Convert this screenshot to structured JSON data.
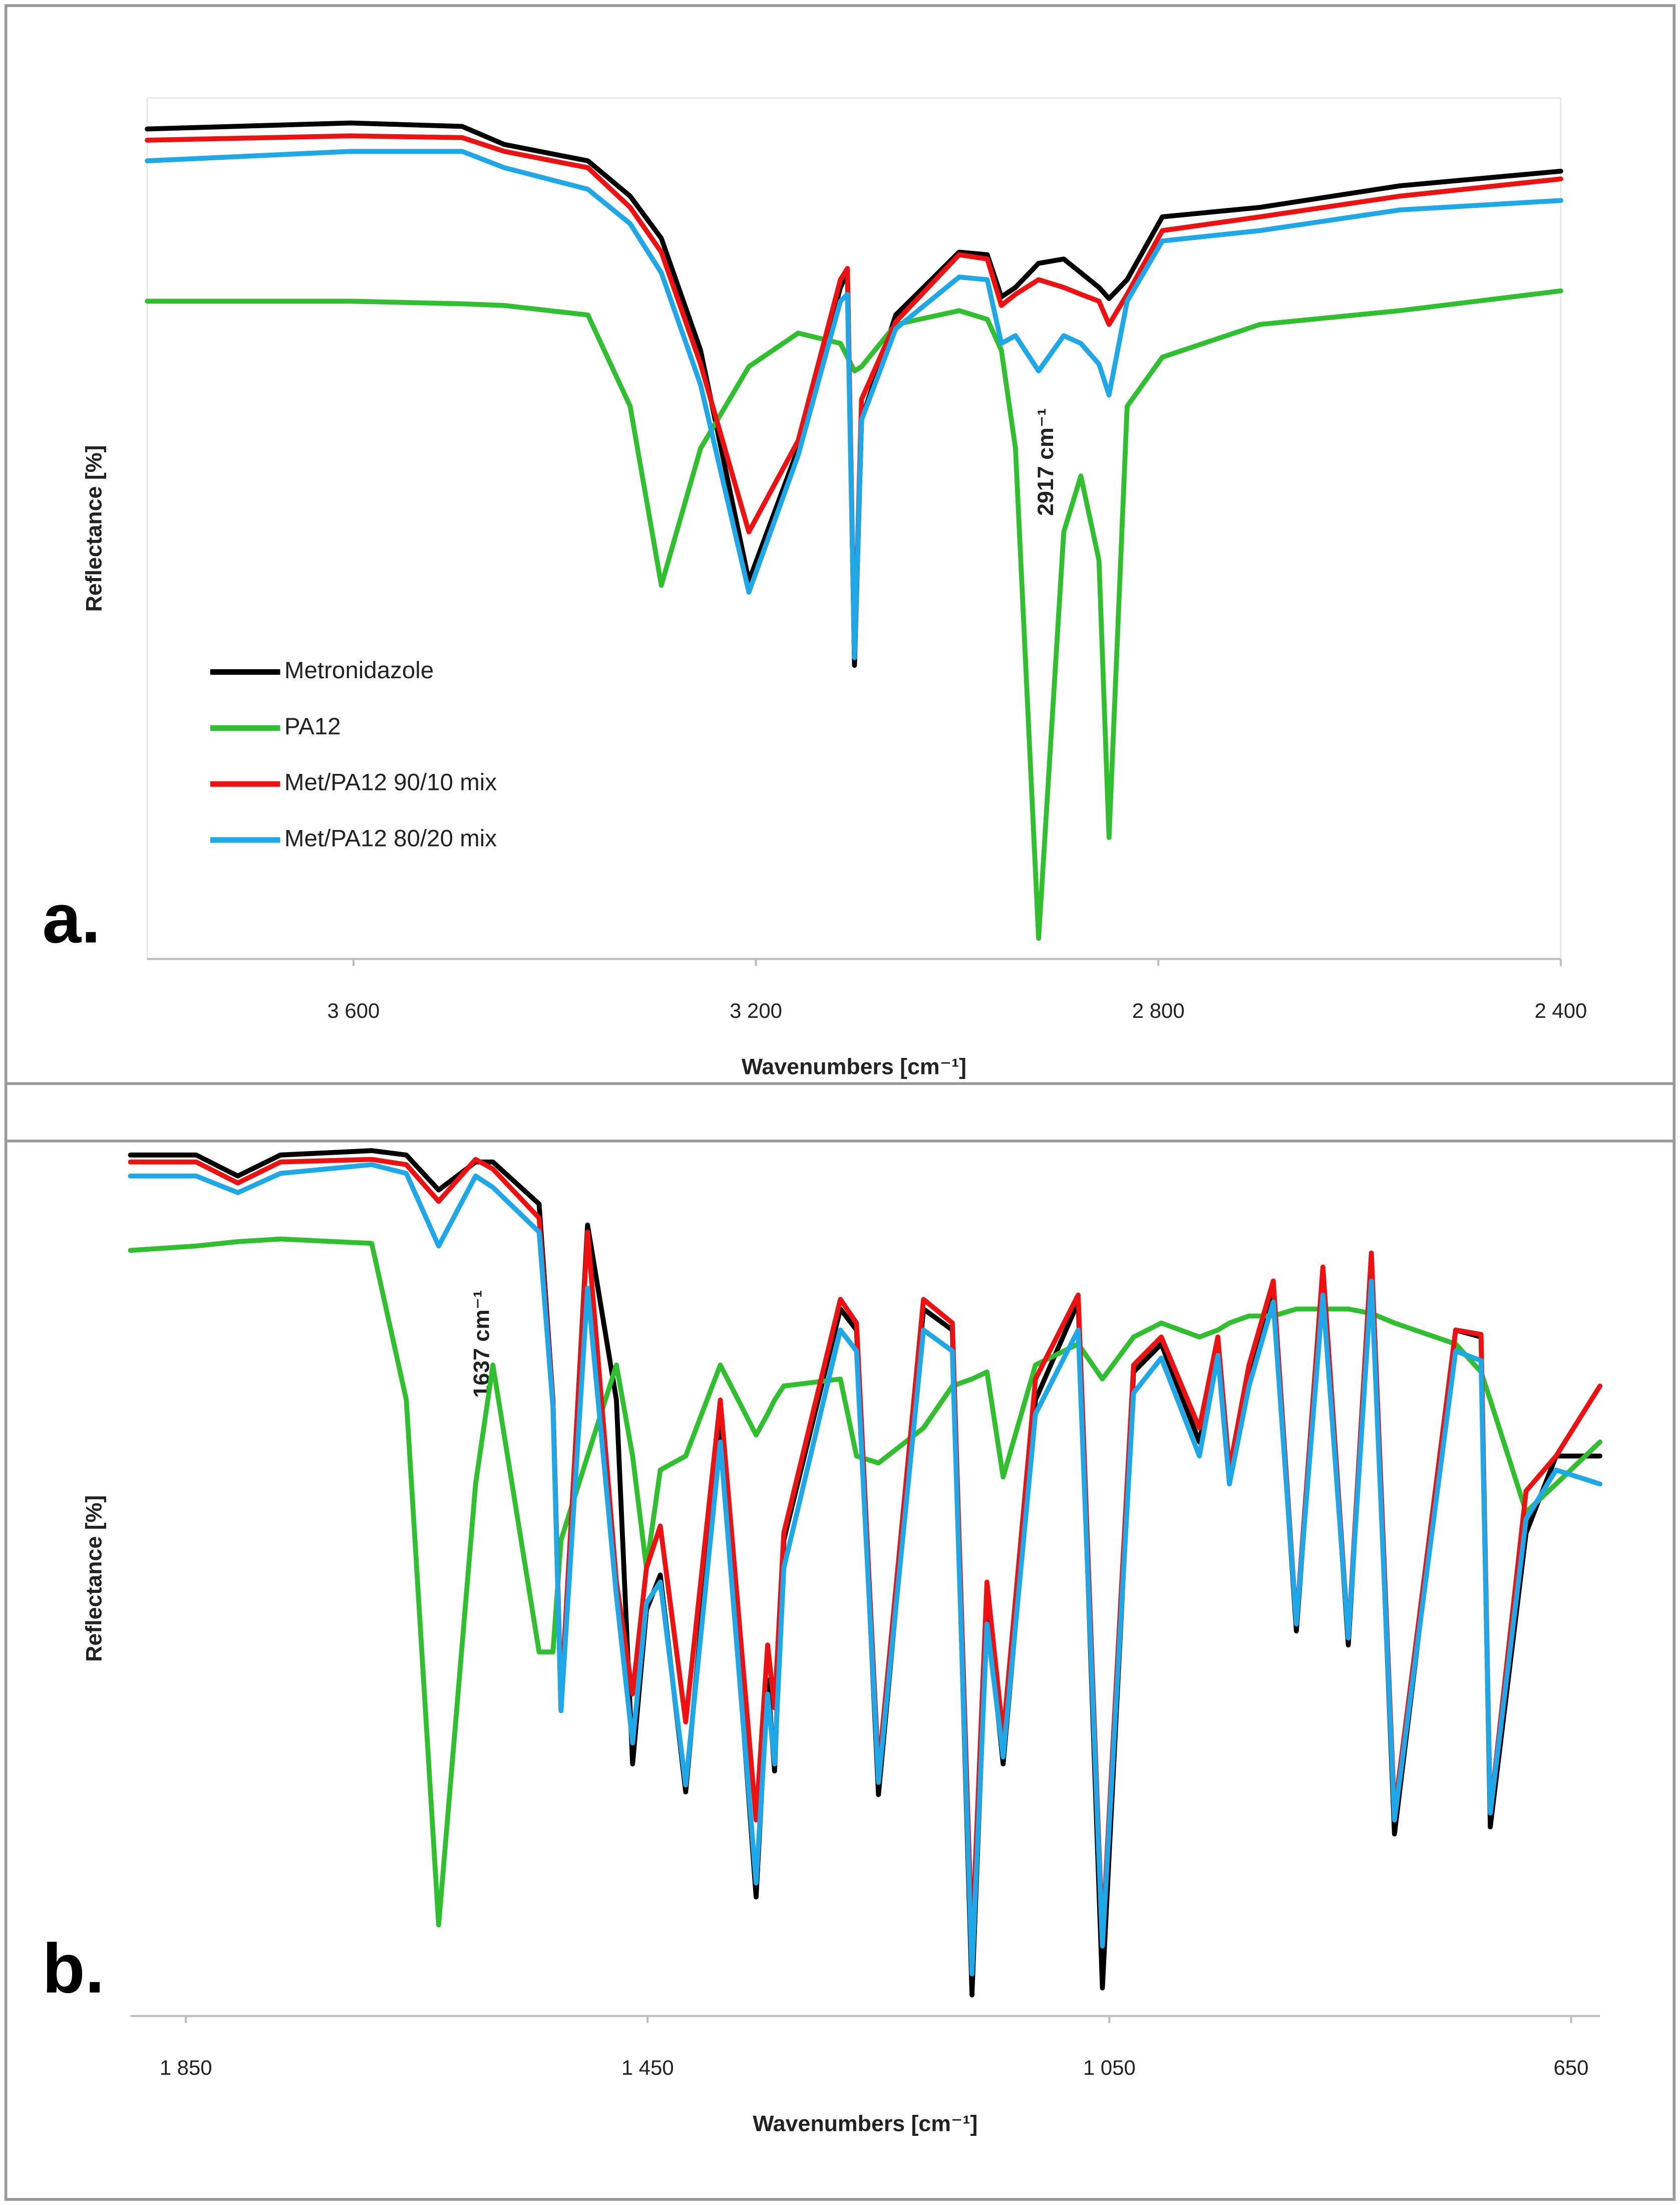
{
  "chart_data": [
    {
      "type": "line",
      "panel_label": "a.",
      "annotation": "2917 cm⁻¹",
      "x_label": "Wavenumbers [cm⁻¹]",
      "y_label": "Reflectance [%]",
      "legend": "lower left",
      "xlim": [
        3805,
        2400
      ],
      "ylim": [
        0,
        100
      ],
      "xticks": [
        {
          "value": 3600,
          "label": "3 600"
        },
        {
          "value": 3200,
          "label": "3 200"
        },
        {
          "value": 2800,
          "label": "2 800"
        },
        {
          "value": 2400,
          "label": "2 400"
        }
      ],
      "x": [
        3805,
        3603,
        3492,
        3450,
        3367,
        3325,
        3294,
        3255,
        3207,
        3158,
        3116,
        3109,
        3102,
        3095,
        3061,
        2998,
        2970,
        2956,
        2942,
        2919,
        2894,
        2877,
        2859,
        2849,
        2831,
        2796,
        2699,
        2560,
        2400
      ],
      "series": [
        {
          "name": "Metronidazole",
          "color": "#000000",
          "values": [
            96.4,
            97.1,
            96.7,
            94.6,
            92.7,
            88.6,
            83.7,
            70.7,
            43.9,
            59.3,
            78.0,
            79.7,
            34.1,
            62.6,
            74.8,
            82.1,
            81.8,
            76.9,
            78.0,
            80.8,
            81.3,
            79.7,
            78.0,
            76.7,
            78.9,
            86.2,
            87.3,
            89.8,
            91.5
          ]
        },
        {
          "name": "PA12",
          "color": "#2fbf2f",
          "values": [
            76.4,
            76.4,
            76.1,
            75.9,
            74.8,
            64.2,
            43.4,
            59.3,
            68.8,
            72.7,
            71.5,
            69.9,
            68.3,
            68.8,
            73.7,
            75.3,
            74.3,
            70.7,
            59.3,
            2.4,
            49.6,
            56.1,
            46.3,
            14.1,
            64.2,
            69.9,
            73.7,
            75.3,
            77.6
          ]
        },
        {
          "name": "Met/PA12 90/10 mix",
          "color": "#ee1111",
          "values": [
            95.1,
            95.6,
            95.4,
            93.8,
            91.9,
            87.3,
            82.1,
            69.1,
            49.6,
            60.2,
            78.9,
            80.2,
            35.0,
            65.0,
            74.0,
            81.8,
            81.3,
            75.9,
            77.2,
            78.9,
            78.0,
            77.2,
            76.4,
            73.7,
            77.2,
            84.6,
            86.2,
            88.6,
            90.6
          ]
        },
        {
          "name": "Met/PA12 80/20 mix",
          "color": "#1fa8e8",
          "values": [
            92.7,
            93.8,
            93.8,
            91.9,
            89.4,
            85.4,
            79.7,
            66.7,
            42.6,
            58.5,
            76.4,
            77.2,
            35.0,
            62.6,
            73.2,
            79.2,
            78.9,
            71.5,
            72.4,
            68.3,
            72.4,
            71.5,
            69.1,
            65.5,
            76.4,
            83.4,
            84.6,
            87.0,
            88.1
          ]
        }
      ]
    },
    {
      "type": "line",
      "panel_label": "b.",
      "annotation": "1637 cm⁻¹",
      "x_label": "Wavenumbers [cm⁻¹]",
      "y_label": "Reflectance [%]",
      "xlim": [
        1898,
        625
      ],
      "ylim": [
        0,
        100
      ],
      "xticks": [
        {
          "value": 1850,
          "label": "1 850"
        },
        {
          "value": 1450,
          "label": "1 450"
        },
        {
          "value": 1050,
          "label": "1 050"
        },
        650
      ],
      "x": [
        1898,
        1841,
        1805,
        1768,
        1689,
        1659,
        1631,
        1599,
        1584,
        1544,
        1532,
        1525,
        1502,
        1477,
        1463,
        1451,
        1439,
        1417,
        1387,
        1356,
        1346,
        1340,
        1332,
        1283,
        1269,
        1250,
        1211,
        1186,
        1169,
        1156,
        1142,
        1114,
        1077,
        1056,
        1029,
        1005,
        972,
        956,
        946,
        929,
        908,
        888,
        865,
        843,
        823,
        803,
        750,
        728,
        720,
        689,
        663,
        625
      ],
      "series": [
        {
          "color": "#000000",
          "values": [
            98.4,
            98.4,
            96.0,
            98.4,
            98.9,
            98.4,
            94.4,
            97.6,
            97.6,
            92.8,
            70.4,
            34.9,
            90.4,
            70.4,
            28.8,
            46.4,
            50.4,
            25.6,
            68.8,
            13.6,
            38.4,
            28.0,
            54.4,
            80.8,
            78.4,
            25.3,
            80.8,
            78.4,
            2.4,
            46.4,
            28.8,
            70.4,
            81.6,
            3.2,
            73.6,
            76.8,
            65.6,
            76.8,
            61.6,
            73.6,
            83.2,
            44.0,
            84.8,
            42.4,
            86.4,
            20.8,
            78.4,
            77.6,
            21.6,
            55.2,
            64.0,
            64.0
          ]
        },
        {
          "color": "#2fbf2f",
          "values": [
            87.5,
            88.0,
            88.5,
            88.8,
            88.3,
            70.4,
            10.4,
            60.8,
            74.4,
            41.6,
            41.6,
            54.4,
            64.0,
            74.4,
            64.0,
            51.2,
            62.4,
            64.0,
            74.4,
            66.4,
            68.8,
            70.4,
            72.0,
            72.8,
            64.0,
            63.2,
            67.2,
            72.0,
            72.8,
            73.6,
            61.6,
            74.4,
            76.8,
            72.8,
            77.6,
            79.2,
            77.6,
            78.4,
            79.2,
            80.0,
            80.0,
            80.8,
            80.8,
            80.8,
            80.3,
            79.2,
            76.8,
            73.6,
            70.4,
            57.6,
            60.8,
            65.6
          ]
        },
        {
          "color": "#ee1111",
          "values": [
            97.6,
            97.6,
            95.2,
            97.6,
            97.9,
            97.3,
            93.1,
            97.9,
            96.8,
            91.2,
            70.4,
            36.0,
            89.6,
            49.6,
            36.8,
            51.2,
            56.0,
            33.6,
            70.4,
            22.4,
            42.4,
            35.2,
            55.2,
            81.9,
            79.2,
            28.0,
            81.9,
            79.2,
            8.0,
            49.6,
            32.0,
            72.8,
            82.4,
            8.8,
            74.4,
            77.6,
            67.2,
            77.6,
            62.4,
            74.4,
            84.0,
            44.8,
            85.6,
            43.2,
            87.2,
            23.2,
            78.4,
            77.9,
            23.2,
            60.0,
            64.0,
            72.0
          ]
        },
        {
          "color": "#1fa8e8",
          "values": [
            96.0,
            96.0,
            94.1,
            96.3,
            97.3,
            96.3,
            88.0,
            96.0,
            94.7,
            89.6,
            69.6,
            34.9,
            83.2,
            48.0,
            31.2,
            47.2,
            49.6,
            26.4,
            65.6,
            15.2,
            36.8,
            28.8,
            51.2,
            78.4,
            76.0,
            26.7,
            78.4,
            76.0,
            4.8,
            44.8,
            29.6,
            68.8,
            78.4,
            8.0,
            71.2,
            75.2,
            64.0,
            75.5,
            60.8,
            72.0,
            81.6,
            44.8,
            82.4,
            43.2,
            84.0,
            22.4,
            76.0,
            74.9,
            23.2,
            56.8,
            62.4,
            60.8
          ]
        }
      ]
    }
  ]
}
